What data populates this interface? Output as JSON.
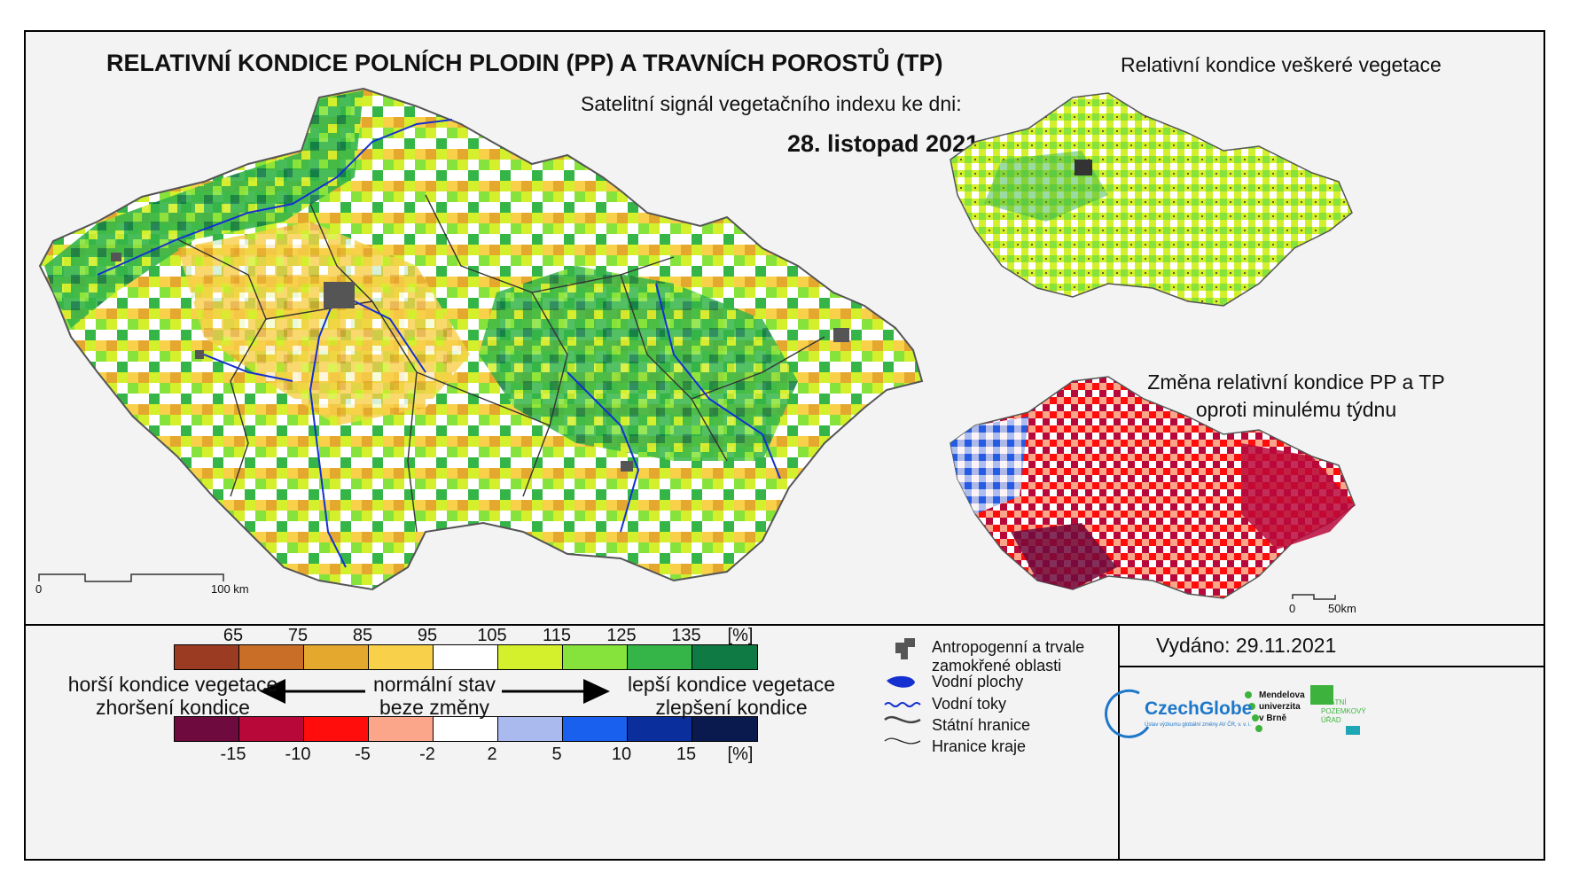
{
  "header": {
    "title": "RELATIVNÍ KONDICE POLNÍCH PLODIN (PP) A TRAVNÍCH POROSTŮ (TP)",
    "subtitle": "Satelitní signál vegetačního indexu ke dni:",
    "date": "28. listopad 2021"
  },
  "inset_top": {
    "title": "Relativní kondice veškeré vegetace"
  },
  "inset_bottom": {
    "title_line1": "Změna relativní kondice PP a TP",
    "title_line2": "oproti minulému týdnu"
  },
  "scalebar_main": {
    "start": "0",
    "end": "100 km"
  },
  "scalebar_inset": {
    "start": "0",
    "end": "50km"
  },
  "legend_condition": {
    "ticks": [
      "65",
      "75",
      "85",
      "95",
      "105",
      "115",
      "125",
      "135"
    ],
    "unit": "[%]",
    "colors": [
      "#9a3b22",
      "#c86e27",
      "#e5a82e",
      "#f8d04a",
      "#ffffff",
      "#d4ef2b",
      "#86e33c",
      "#35b548",
      "#0f7a44"
    ]
  },
  "legend_change": {
    "ticks": [
      "-15",
      "-10",
      "-5",
      "-2",
      "2",
      "5",
      "10",
      "15"
    ],
    "unit": "[%]",
    "colors": [
      "#6e0a3d",
      "#b8083a",
      "#ff0d0d",
      "#fba58a",
      "#ffffff",
      "#aab9ee",
      "#1a60ee",
      "#0a2e9b",
      "#0b1a4e"
    ]
  },
  "arrows": {
    "left_line1": "horší kondice vegetace",
    "left_line2": "zhoršení kondice",
    "center_line1": "normální stav",
    "center_line2": "beze změny",
    "right_line1": "lepší kondice vegetace",
    "right_line2": "zlepšení kondice"
  },
  "map_legend": {
    "urban": "Antropogenní a trvale zamokřené oblasti",
    "water_bodies": "Vodní plochy",
    "rivers": "Vodní toky",
    "state_border": "Státní hranice",
    "region_border": "Hranice kraje"
  },
  "issued": "Vydáno: 29.11.2021",
  "logos": {
    "czechglobe": "CzechGlobe",
    "czechglobe_sub": "Ústav výzkumu globální změny AV ČR, v. v. i.",
    "mendel_1": "Mendelova",
    "mendel_2": "univerzita",
    "mendel_3": "v Brně",
    "spu_1": "STÁTNÍ",
    "spu_2": "POZEMKOVÝ",
    "spu_3": "ÚŘAD"
  }
}
